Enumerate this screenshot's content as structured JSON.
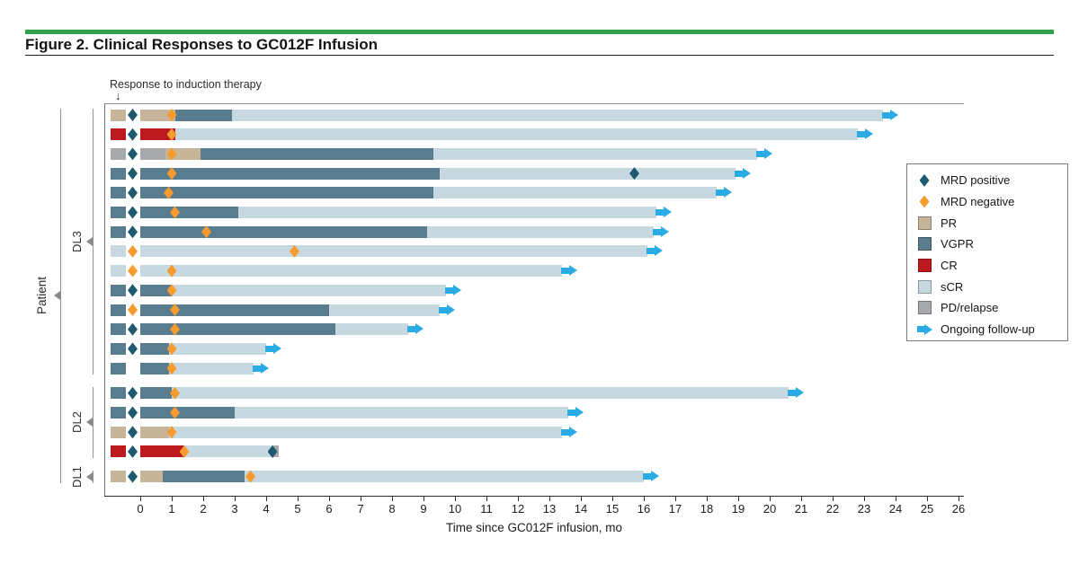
{
  "figure": {
    "title": "Figure 2. Clinical Responses to GC012F Infusion",
    "accent_rule_color": "#31a149"
  },
  "annotation": {
    "label": "Response to induction therapy",
    "arrow_glyph": "↓"
  },
  "colors": {
    "PR": "#c6b598",
    "VGPR": "#597d8e",
    "CR": "#bd1a20",
    "sCR": "#c8d8e0",
    "PD": "#a7a9ac",
    "mrd_positive": "#1e5a6e",
    "mrd_negative": "#f79b2e",
    "ongoing": "#2aabe3",
    "axis": "#2b2b2b",
    "bracket": "#8a8a8a"
  },
  "legend": {
    "items": [
      {
        "icon": "mrd-positive-diamond-icon",
        "shape": "diamond",
        "color_key": "mrd_positive",
        "label": "MRD positive"
      },
      {
        "icon": "mrd-negative-diamond-icon",
        "shape": "diamond",
        "color_key": "mrd_negative",
        "label": "MRD negative"
      },
      {
        "icon": "pr-swatch-icon",
        "shape": "square",
        "color_key": "PR",
        "label": "PR"
      },
      {
        "icon": "vgpr-swatch-icon",
        "shape": "square",
        "color_key": "VGPR",
        "label": "VGPR"
      },
      {
        "icon": "cr-swatch-icon",
        "shape": "square",
        "color_key": "CR",
        "label": "CR"
      },
      {
        "icon": "scr-swatch-icon",
        "shape": "square",
        "color_key": "sCR",
        "label": "sCR"
      },
      {
        "icon": "pd-swatch-icon",
        "shape": "square",
        "color_key": "PD",
        "label": "PD/relapse"
      },
      {
        "icon": "ongoing-arrow-icon",
        "shape": "arrow",
        "color_key": "ongoing",
        "label": "Ongoing follow-up"
      }
    ]
  },
  "chart_data": {
    "type": "bar",
    "variant": "swimmer-horizontal-stacked",
    "title": "Figure 2. Clinical Responses to GC012F Infusion",
    "xlabel": "Time since GC012F infusion, mo",
    "ylabel": "Patient",
    "xlim": [
      0,
      26
    ],
    "x_ticks": [
      0,
      1,
      2,
      3,
      4,
      5,
      6,
      7,
      8,
      9,
      10,
      11,
      12,
      13,
      14,
      15,
      16,
      17,
      18,
      19,
      20,
      21,
      22,
      23,
      24,
      25,
      26
    ],
    "grid": false,
    "legend_position": "right",
    "groups": [
      {
        "label": "DL3",
        "start": 0,
        "count": 14
      },
      {
        "label": "DL2",
        "start": 14,
        "count": 4
      },
      {
        "label": "DL1",
        "start": 18,
        "count": 1
      }
    ],
    "patients": [
      {
        "group": "DL3",
        "induction_response": "PR",
        "baseline_mrd": "positive",
        "segments": [
          {
            "response": "PR",
            "start": 0,
            "end": 1.1
          },
          {
            "response": "VGPR",
            "start": 1.1,
            "end": 2.9
          },
          {
            "response": "sCR",
            "start": 2.9,
            "end": 23.6
          }
        ],
        "mrd_markers": [
          {
            "type": "negative",
            "t": 1.0
          }
        ],
        "ongoing": true
      },
      {
        "group": "DL3",
        "induction_response": "CR",
        "baseline_mrd": "positive",
        "segments": [
          {
            "response": "CR",
            "start": 0,
            "end": 1.1
          },
          {
            "response": "sCR",
            "start": 1.1,
            "end": 22.8
          }
        ],
        "mrd_markers": [
          {
            "type": "negative",
            "t": 1.0
          }
        ],
        "ongoing": true
      },
      {
        "group": "DL3",
        "induction_response": "PD",
        "baseline_mrd": "positive",
        "segments": [
          {
            "response": "PD",
            "start": 0,
            "end": 0.8
          },
          {
            "response": "PR",
            "start": 0.8,
            "end": 1.9
          },
          {
            "response": "VGPR",
            "start": 1.9,
            "end": 9.3
          },
          {
            "response": "sCR",
            "start": 9.3,
            "end": 19.6
          }
        ],
        "mrd_markers": [
          {
            "type": "negative",
            "t": 1.0
          }
        ],
        "ongoing": true
      },
      {
        "group": "DL3",
        "induction_response": "VGPR",
        "baseline_mrd": "positive",
        "segments": [
          {
            "response": "VGPR",
            "start": 0,
            "end": 9.5
          },
          {
            "response": "sCR",
            "start": 9.5,
            "end": 18.9
          }
        ],
        "mrd_markers": [
          {
            "type": "negative",
            "t": 1.0
          },
          {
            "type": "positive",
            "t": 15.7
          }
        ],
        "ongoing": true
      },
      {
        "group": "DL3",
        "induction_response": "VGPR",
        "baseline_mrd": "positive",
        "segments": [
          {
            "response": "VGPR",
            "start": 0,
            "end": 9.3
          },
          {
            "response": "sCR",
            "start": 9.3,
            "end": 18.3
          }
        ],
        "mrd_markers": [
          {
            "type": "negative",
            "t": 0.9
          }
        ],
        "ongoing": true
      },
      {
        "group": "DL3",
        "induction_response": "VGPR",
        "baseline_mrd": "positive",
        "segments": [
          {
            "response": "VGPR",
            "start": 0,
            "end": 3.1
          },
          {
            "response": "sCR",
            "start": 3.1,
            "end": 16.4
          }
        ],
        "mrd_markers": [
          {
            "type": "negative",
            "t": 1.1
          }
        ],
        "ongoing": true
      },
      {
        "group": "DL3",
        "induction_response": "VGPR",
        "baseline_mrd": "positive",
        "segments": [
          {
            "response": "VGPR",
            "start": 0,
            "end": 9.1
          },
          {
            "response": "sCR",
            "start": 9.1,
            "end": 16.3
          }
        ],
        "mrd_markers": [
          {
            "type": "negative",
            "t": 2.1
          }
        ],
        "ongoing": true
      },
      {
        "group": "DL3",
        "induction_response": "sCR",
        "baseline_mrd": "negative",
        "segments": [
          {
            "response": "sCR",
            "start": 0,
            "end": 16.1
          }
        ],
        "mrd_markers": [
          {
            "type": "negative",
            "t": 4.9
          }
        ],
        "ongoing": true
      },
      {
        "group": "DL3",
        "induction_response": "sCR",
        "baseline_mrd": "negative",
        "segments": [
          {
            "response": "sCR",
            "start": 0,
            "end": 13.4
          }
        ],
        "mrd_markers": [
          {
            "type": "negative",
            "t": 1.0
          }
        ],
        "ongoing": true
      },
      {
        "group": "DL3",
        "induction_response": "VGPR",
        "baseline_mrd": "positive",
        "segments": [
          {
            "response": "VGPR",
            "start": 0,
            "end": 1.0
          },
          {
            "response": "sCR",
            "start": 1.0,
            "end": 9.7
          }
        ],
        "mrd_markers": [
          {
            "type": "negative",
            "t": 1.0
          }
        ],
        "ongoing": true
      },
      {
        "group": "DL3",
        "induction_response": "VGPR",
        "baseline_mrd": "negative",
        "segments": [
          {
            "response": "VGPR",
            "start": 0,
            "end": 6.0
          },
          {
            "response": "sCR",
            "start": 6.0,
            "end": 9.5
          }
        ],
        "mrd_markers": [
          {
            "type": "negative",
            "t": 1.1
          }
        ],
        "ongoing": true
      },
      {
        "group": "DL3",
        "induction_response": "VGPR",
        "baseline_mrd": "positive",
        "segments": [
          {
            "response": "VGPR",
            "start": 0,
            "end": 6.2
          },
          {
            "response": "sCR",
            "start": 6.2,
            "end": 8.5
          }
        ],
        "mrd_markers": [
          {
            "type": "negative",
            "t": 1.1
          }
        ],
        "ongoing": true
      },
      {
        "group": "DL3",
        "induction_response": "VGPR",
        "baseline_mrd": "positive",
        "segments": [
          {
            "response": "VGPR",
            "start": 0,
            "end": 0.9
          },
          {
            "response": "sCR",
            "start": 0.9,
            "end": 4.0
          }
        ],
        "mrd_markers": [
          {
            "type": "negative",
            "t": 1.0
          }
        ],
        "ongoing": true
      },
      {
        "group": "DL3",
        "induction_response": "VGPR",
        "baseline_mrd": null,
        "segments": [
          {
            "response": "VGPR",
            "start": 0,
            "end": 0.9
          },
          {
            "response": "sCR",
            "start": 0.9,
            "end": 3.6
          }
        ],
        "mrd_markers": [
          {
            "type": "negative",
            "t": 1.0
          }
        ],
        "ongoing": true
      },
      {
        "group": "DL2",
        "induction_response": "VGPR",
        "baseline_mrd": "positive",
        "segments": [
          {
            "response": "VGPR",
            "start": 0,
            "end": 1.0
          },
          {
            "response": "sCR",
            "start": 1.0,
            "end": 20.6
          }
        ],
        "mrd_markers": [
          {
            "type": "negative",
            "t": 1.1
          }
        ],
        "ongoing": true
      },
      {
        "group": "DL2",
        "induction_response": "VGPR",
        "baseline_mrd": "positive",
        "segments": [
          {
            "response": "VGPR",
            "start": 0,
            "end": 3.0
          },
          {
            "response": "sCR",
            "start": 3.0,
            "end": 13.6
          }
        ],
        "mrd_markers": [
          {
            "type": "negative",
            "t": 1.1
          }
        ],
        "ongoing": true
      },
      {
        "group": "DL2",
        "induction_response": "PR",
        "baseline_mrd": "positive",
        "segments": [
          {
            "response": "PR",
            "start": 0,
            "end": 0.9
          },
          {
            "response": "sCR",
            "start": 0.9,
            "end": 13.4
          }
        ],
        "mrd_markers": [
          {
            "type": "negative",
            "t": 1.0
          }
        ],
        "ongoing": true
      },
      {
        "group": "DL2",
        "induction_response": "CR",
        "baseline_mrd": "positive",
        "segments": [
          {
            "response": "CR",
            "start": 0,
            "end": 1.4
          },
          {
            "response": "sCR",
            "start": 1.4,
            "end": 4.2
          },
          {
            "response": "PD",
            "start": 4.2,
            "end": 4.4
          }
        ],
        "mrd_markers": [
          {
            "type": "negative",
            "t": 1.4
          },
          {
            "type": "positive",
            "t": 4.2
          }
        ],
        "ongoing": false
      },
      {
        "group": "DL1",
        "induction_response": "PR",
        "baseline_mrd": "positive",
        "segments": [
          {
            "response": "PR",
            "start": 0,
            "end": 0.7
          },
          {
            "response": "VGPR",
            "start": 0.7,
            "end": 3.3
          },
          {
            "response": "sCR",
            "start": 3.3,
            "end": 16.0
          }
        ],
        "mrd_markers": [
          {
            "type": "negative",
            "t": 3.5
          }
        ],
        "ongoing": true
      }
    ]
  }
}
